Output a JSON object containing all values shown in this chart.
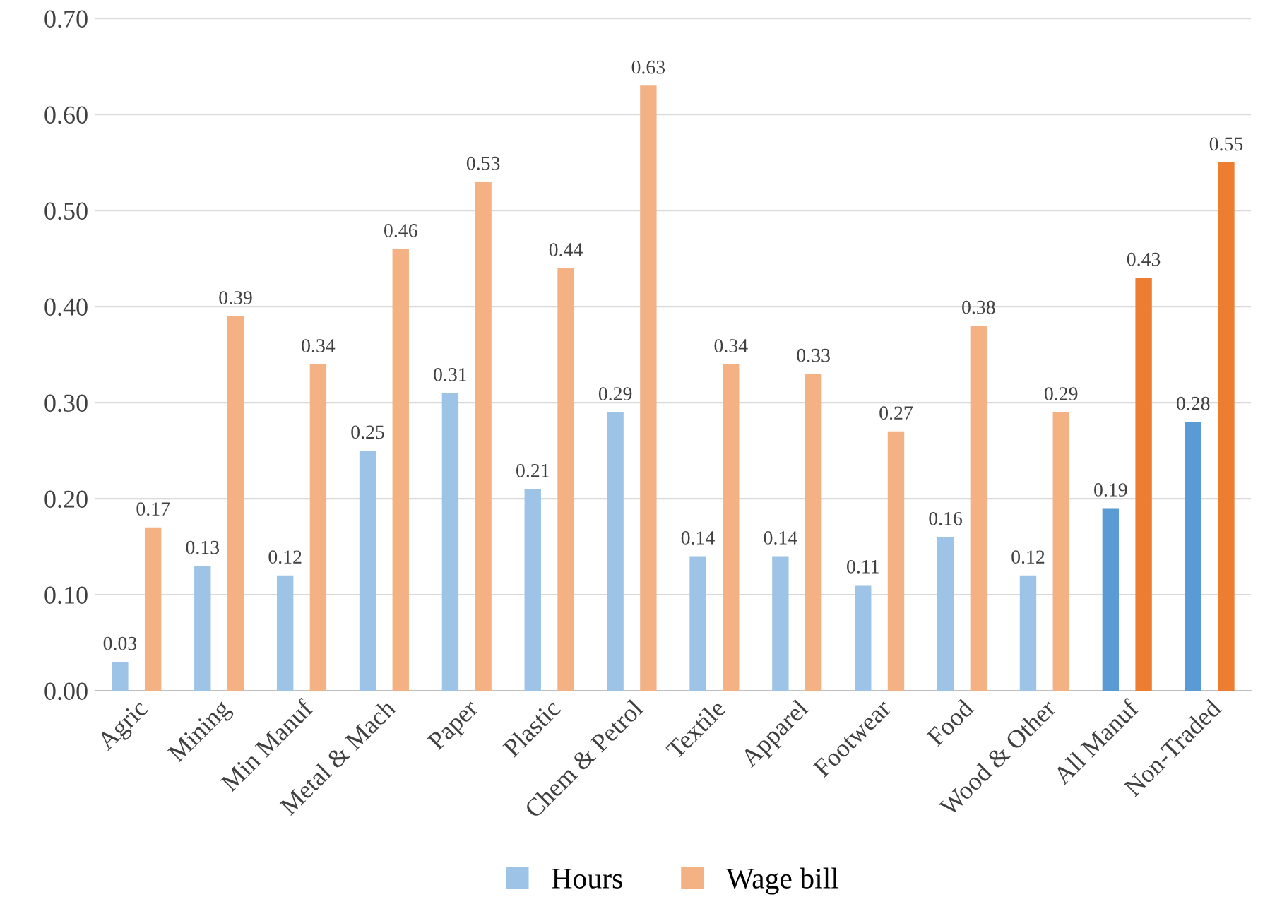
{
  "chart_data": {
    "type": "bar",
    "categories": [
      "Agric",
      "Mining",
      "Min Manuf",
      "Metal & Mach",
      "Paper",
      "Plastic",
      "Chem & Petrol",
      "Textile",
      "Apparel",
      "Footwear",
      "Food",
      "Wood & Other",
      "All Manuf",
      "Non-Traded"
    ],
    "series": [
      {
        "name": "Hours",
        "color": "#9dc3e6",
        "colors": [
          "#9dc3e6",
          "#9dc3e6",
          "#9dc3e6",
          "#9dc3e6",
          "#9dc3e6",
          "#9dc3e6",
          "#9dc3e6",
          "#9dc3e6",
          "#9dc3e6",
          "#9dc3e6",
          "#9dc3e6",
          "#9dc3e6",
          "#5b9bd5",
          "#5b9bd5"
        ],
        "values": [
          0.03,
          0.13,
          0.12,
          0.25,
          0.31,
          0.21,
          0.29,
          0.14,
          0.14,
          0.11,
          0.16,
          0.12,
          0.19,
          0.28
        ]
      },
      {
        "name": "Wage bill",
        "color": "#f4b183",
        "colors": [
          "#f4b183",
          "#f4b183",
          "#f4b183",
          "#f4b183",
          "#f4b183",
          "#f4b183",
          "#f4b183",
          "#f4b183",
          "#f4b183",
          "#f4b183",
          "#f4b183",
          "#f4b183",
          "#ed7d31",
          "#ed7d31"
        ],
        "values": [
          0.17,
          0.39,
          0.34,
          0.46,
          0.53,
          0.44,
          0.63,
          0.34,
          0.33,
          0.27,
          0.38,
          0.29,
          0.43,
          0.55
        ]
      }
    ],
    "ylim": [
      0,
      0.7
    ],
    "yticks": [
      {
        "value": 0,
        "label": "0.00"
      },
      {
        "value": 0.1,
        "label": "0.10"
      },
      {
        "value": 0.2,
        "label": "0.20"
      },
      {
        "value": 0.3,
        "label": "0.30"
      },
      {
        "value": 0.4,
        "label": "0.40"
      },
      {
        "value": 0.5,
        "label": "0.50"
      },
      {
        "value": 0.6,
        "label": "0.60"
      },
      {
        "value": 0.7,
        "label": "0.70"
      }
    ],
    "grid": "y",
    "legend": "bottom",
    "data_labels": true
  }
}
